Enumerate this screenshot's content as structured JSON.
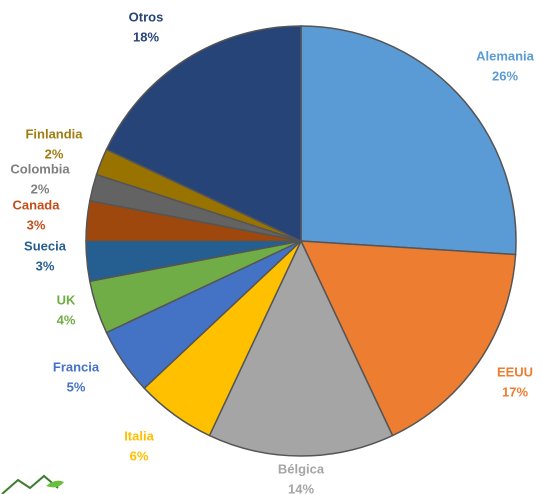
{
  "chart_data": {
    "type": "pie",
    "categories": [
      "Alemania",
      "EEUU",
      "Bélgica",
      "Italia",
      "Francia",
      "UK",
      "Suecia",
      "Canada",
      "Colombia",
      "Finlandia",
      "Otros"
    ],
    "values": [
      26,
      17,
      14,
      6,
      5,
      4,
      3,
      3,
      2,
      2,
      18
    ],
    "value_labels": [
      "26%",
      "17%",
      "14%",
      "6%",
      "5%",
      "4%",
      "3%",
      "3%",
      "2%",
      "2%",
      "18%"
    ],
    "colors": [
      "#5b9bd5",
      "#ed7d31",
      "#a5a5a5",
      "#ffc000",
      "#4472c4",
      "#70ad47",
      "#255e91",
      "#9e480e",
      "#636363",
      "#997300",
      "#264478"
    ]
  }
}
